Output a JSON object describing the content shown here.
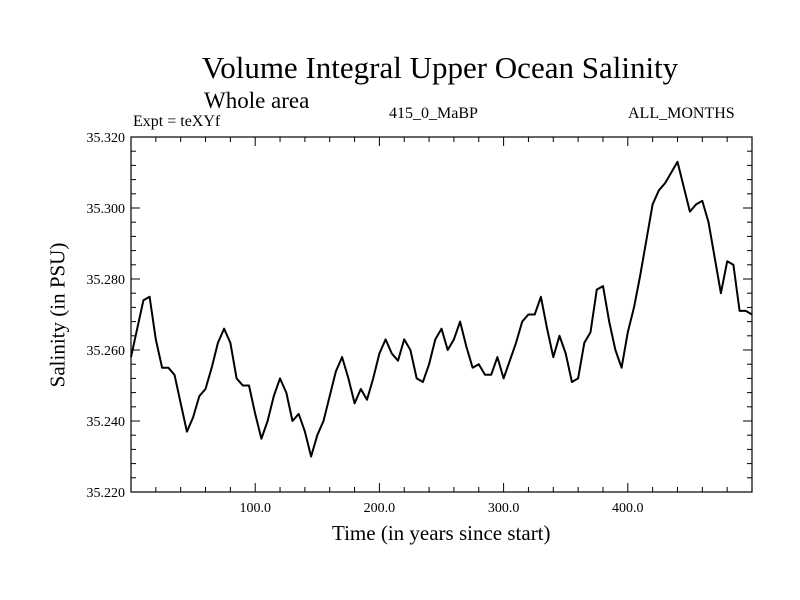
{
  "chart_data": {
    "type": "line",
    "title": "Volume Integral Upper Ocean Salinity",
    "subtitle": "Whole area",
    "annotations": {
      "experiment": "Expt = teXYf",
      "run": "415_0_MaBP",
      "months": "ALL_MONTHS"
    },
    "xlabel": "Time (in years since start)",
    "ylabel": "Salinity (in PSU)",
    "xlim": [
      0,
      500
    ],
    "ylim": [
      35.22,
      35.32
    ],
    "x_ticks": [
      {
        "value": 100,
        "label": "100.0"
      },
      {
        "value": 200,
        "label": "200.0"
      },
      {
        "value": 300,
        "label": "300.0"
      },
      {
        "value": 400,
        "label": "400.0"
      }
    ],
    "y_ticks": [
      {
        "value": 35.22,
        "label": "35.220"
      },
      {
        "value": 35.24,
        "label": "35.240"
      },
      {
        "value": 35.26,
        "label": "35.260"
      },
      {
        "value": 35.28,
        "label": "35.280"
      },
      {
        "value": 35.3,
        "label": "35.300"
      },
      {
        "value": 35.32,
        "label": "35.320"
      }
    ],
    "grid": false,
    "legend": "none",
    "series": [
      {
        "color": "#000000",
        "x": [
          0,
          5,
          10,
          15,
          20,
          25,
          30,
          35,
          40,
          45,
          50,
          55,
          60,
          65,
          70,
          75,
          80,
          85,
          90,
          95,
          100,
          105,
          110,
          115,
          120,
          125,
          130,
          135,
          140,
          145,
          150,
          155,
          160,
          165,
          170,
          175,
          180,
          185,
          190,
          195,
          200,
          205,
          210,
          215,
          220,
          225,
          230,
          235,
          240,
          245,
          250,
          255,
          260,
          265,
          270,
          275,
          280,
          285,
          290,
          295,
          300,
          305,
          310,
          315,
          320,
          325,
          330,
          335,
          340,
          345,
          350,
          355,
          360,
          365,
          370,
          375,
          380,
          385,
          390,
          395,
          400,
          405,
          410,
          415,
          420,
          425,
          430,
          435,
          440,
          445,
          450,
          455,
          460,
          465,
          470,
          475,
          480,
          485,
          490,
          495,
          500
        ],
        "y": [
          35.258,
          35.266,
          35.274,
          35.275,
          35.263,
          35.255,
          35.255,
          35.253,
          35.245,
          35.237,
          35.241,
          35.247,
          35.249,
          35.255,
          35.262,
          35.266,
          35.262,
          35.252,
          35.25,
          35.25,
          35.242,
          35.235,
          35.24,
          35.247,
          35.252,
          35.248,
          35.24,
          35.242,
          35.237,
          35.23,
          35.236,
          35.24,
          35.247,
          35.254,
          35.258,
          35.252,
          35.245,
          35.249,
          35.246,
          35.252,
          35.259,
          35.263,
          35.259,
          35.257,
          35.263,
          35.26,
          35.252,
          35.251,
          35.256,
          35.263,
          35.266,
          35.26,
          35.263,
          35.268,
          35.261,
          35.255,
          35.256,
          35.253,
          35.253,
          35.258,
          35.252,
          35.257,
          35.262,
          35.268,
          35.27,
          35.27,
          35.275,
          35.266,
          35.258,
          35.264,
          35.259,
          35.251,
          35.252,
          35.262,
          35.265,
          35.277,
          35.278,
          35.268,
          35.26,
          35.255,
          35.265,
          35.272,
          35.281,
          35.291,
          35.301,
          35.305,
          35.307,
          35.31,
          35.313,
          35.306,
          35.299,
          35.301,
          35.302,
          35.296,
          35.286,
          35.276,
          35.285,
          35.284,
          35.271,
          35.271,
          35.27
        ]
      }
    ]
  }
}
